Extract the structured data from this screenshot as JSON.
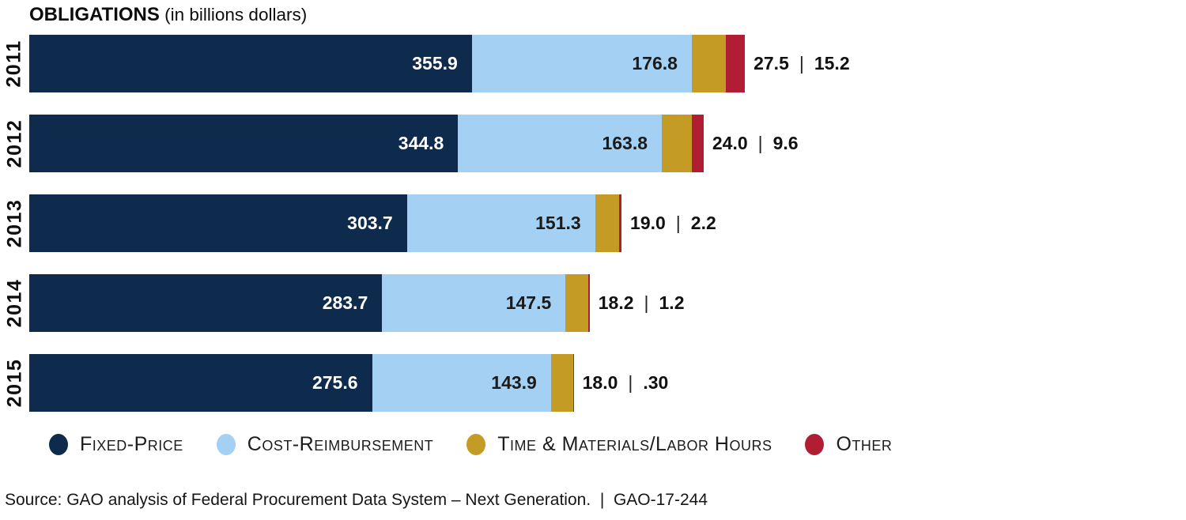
{
  "title": {
    "main": "OBLIGATIONS",
    "subtitle": " (in billions dollars)"
  },
  "chart_data": {
    "type": "bar",
    "orientation": "horizontal",
    "stacked": true,
    "value_unit": "billions of dollars",
    "legend_position": "bottom",
    "axis_lines": "none",
    "categories": [
      "2011",
      "2012",
      "2013",
      "2014",
      "2015"
    ],
    "series": [
      {
        "name": "Fixed-Price",
        "color": "#0e2a4c",
        "values": [
          355.9,
          344.8,
          303.7,
          283.7,
          275.6
        ]
      },
      {
        "name": "Cost-Reimbursement",
        "color": "#a3d0f3",
        "values": [
          176.8,
          163.8,
          151.3,
          147.5,
          143.9
        ]
      },
      {
        "name": "Time & Materials/Labor Hours",
        "color": "#c49b25",
        "values": [
          27.5,
          24.0,
          19.0,
          18.2,
          18.0
        ]
      },
      {
        "name": "Other",
        "color": "#b11e33",
        "values": [
          15.2,
          9.6,
          2.2,
          1.2,
          0.3
        ]
      }
    ],
    "value_labels": [
      {
        "year": "2011",
        "fixed_price": "355.9",
        "cost_reimbursement": "176.8",
        "time_materials": "27.5",
        "other": "15.2"
      },
      {
        "year": "2012",
        "fixed_price": "344.8",
        "cost_reimbursement": "163.8",
        "time_materials": "24.0",
        "other": "9.6"
      },
      {
        "year": "2013",
        "fixed_price": "303.7",
        "cost_reimbursement": "151.3",
        "time_materials": "19.0",
        "other": "2.2"
      },
      {
        "year": "2014",
        "fixed_price": "283.7",
        "cost_reimbursement": "147.5",
        "time_materials": "18.2",
        "other": "1.2"
      },
      {
        "year": "2015",
        "fixed_price": "275.6",
        "cost_reimbursement": "143.9",
        "time_materials": "18.0",
        "other": ".30"
      }
    ]
  },
  "separator": "|",
  "legend": {
    "items": [
      {
        "label": "Fixed-Price",
        "color": "#0e2a4c"
      },
      {
        "label": "Cost-Reimbursement",
        "color": "#a3d0f3"
      },
      {
        "label": "Time & Materials/Labor Hours",
        "color": "#c49b25"
      },
      {
        "label": "Other",
        "color": "#b11e33"
      }
    ]
  },
  "footer": {
    "source": "Source: GAO analysis of Federal Procurement Data System – Next Generation.  |  GAO-17-244"
  }
}
